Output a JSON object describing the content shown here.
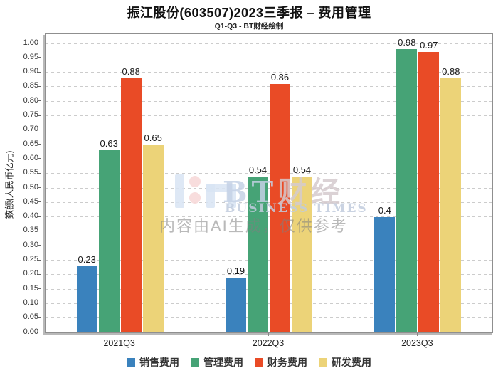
{
  "title": "振江股份(603507)2023三季报 – 费用管理",
  "subtitle": "Q1-Q3 - BT财经绘制",
  "watermark": {
    "brand_latin": "BT",
    "brand_cjk": "财经",
    "brand_sub": "BUSINESS TIMES",
    "note": "内容由AI生成，仅供参考"
  },
  "chart_data": {
    "type": "bar",
    "categories": [
      "2021Q3",
      "2022Q3",
      "2023Q3"
    ],
    "series": [
      {
        "name": "销售费用",
        "color": "#3a82bd",
        "values": [
          0.23,
          0.19,
          0.4
        ]
      },
      {
        "name": "管理费用",
        "color": "#46a376",
        "values": [
          0.63,
          0.54,
          0.98
        ]
      },
      {
        "name": "财务费用",
        "color": "#e94b26",
        "values": [
          0.88,
          0.86,
          0.97
        ]
      },
      {
        "name": "研发费用",
        "color": "#ecd378",
        "values": [
          0.65,
          0.54,
          0.88
        ]
      }
    ],
    "xlabel": "",
    "ylabel": "数额(人民币亿元)",
    "ylim": [
      0.0,
      1.0
    ],
    "ytick_step": 0.05,
    "ytick_format_decimals": 2,
    "grid": true,
    "grid_style": "dashed",
    "legend_position": "bottom",
    "data_labels": true
  }
}
